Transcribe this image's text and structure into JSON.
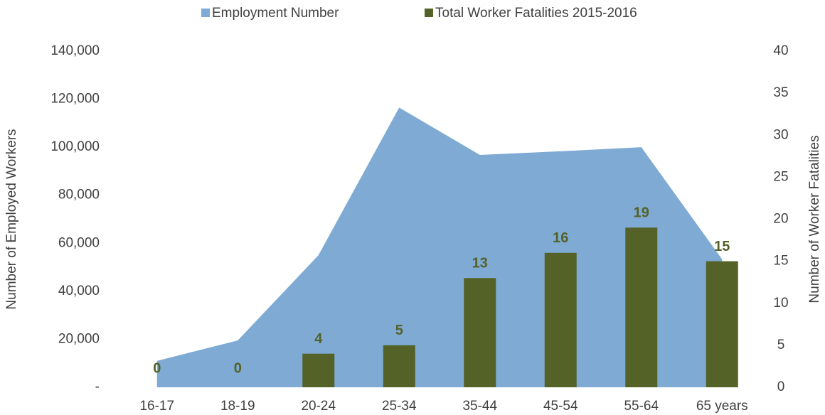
{
  "chart_data": {
    "type": "area_bar",
    "categories": [
      "16-17",
      "18-19",
      "20-24",
      "25-34",
      "35-44",
      "45-54",
      "55-64",
      "65 years"
    ],
    "series": [
      {
        "name": "Employment Number",
        "type": "area",
        "axis": "y",
        "color": "#7eaad3",
        "values": [
          11000,
          19500,
          55000,
          116500,
          96800,
          98300,
          100000,
          53300
        ]
      },
      {
        "name": "Total Worker Fatalities 2015-2016",
        "type": "bar",
        "axis": "y2",
        "color": "#546228",
        "values": [
          0,
          0,
          4,
          5,
          13,
          16,
          19,
          15
        ]
      }
    ],
    "ylabel": "Number of Employed Workers",
    "y2label": "Number of Worker Fatalities",
    "ylim": [
      0,
      140000
    ],
    "yticks": [
      {
        "value": 0,
        "label": "-"
      },
      {
        "value": 20000,
        "label": "20,000"
      },
      {
        "value": 40000,
        "label": "40,000"
      },
      {
        "value": 60000,
        "label": "60,000"
      },
      {
        "value": 80000,
        "label": "80,000"
      },
      {
        "value": 100000,
        "label": "100,000"
      },
      {
        "value": 120000,
        "label": "120,000"
      },
      {
        "value": 140000,
        "label": "140,000"
      }
    ],
    "y2lim": [
      0,
      40
    ],
    "y2ticks": [
      0,
      5,
      10,
      15,
      20,
      25,
      30,
      35,
      40
    ],
    "legend": "top"
  }
}
